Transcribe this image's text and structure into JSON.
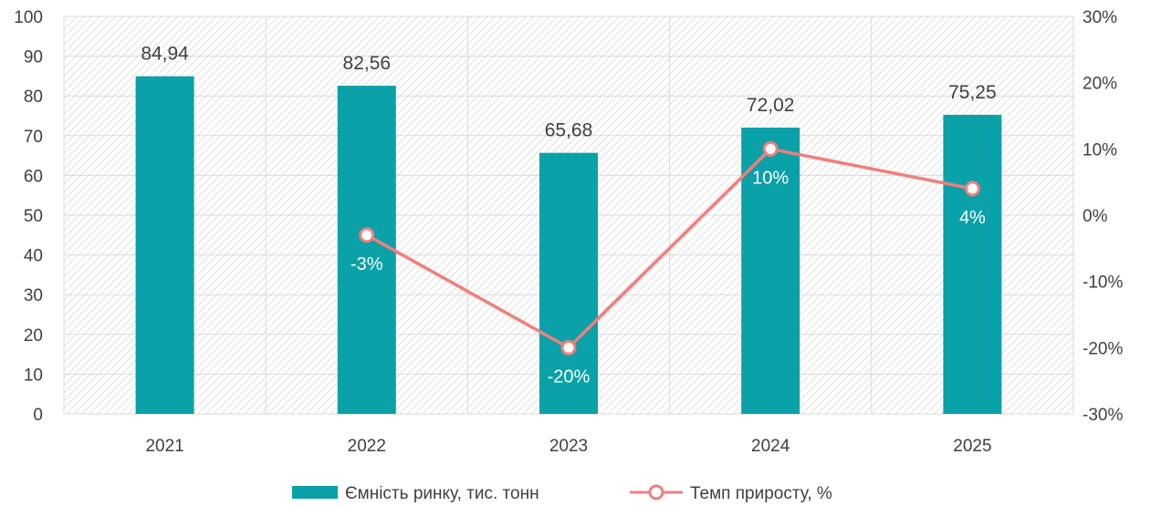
{
  "colors": {
    "bar": "#0aa1a8",
    "line": "#f07f7c",
    "grid": "#d9d9d9",
    "text": "#404040"
  },
  "chart_data": {
    "type": "bar",
    "categories": [
      "2021",
      "2022",
      "2023",
      "2024",
      "2025"
    ],
    "series": [
      {
        "name": "Ємність ринку, тис. тонн",
        "type": "bar",
        "axis": "left",
        "values": [
          84.94,
          82.56,
          65.68,
          72.02,
          75.25
        ],
        "labels": [
          "84,94",
          "82,56",
          "65,68",
          "72,02",
          "75,25"
        ]
      },
      {
        "name": "Темп приросту, %",
        "type": "line",
        "axis": "right",
        "values": [
          null,
          -3,
          -20,
          10,
          4
        ],
        "labels": [
          "",
          "-3%",
          "-20%",
          "10%",
          "4%"
        ]
      }
    ],
    "left_axis": {
      "min": 0,
      "max": 100,
      "step": 10,
      "ticks": [
        "0",
        "10",
        "20",
        "30",
        "40",
        "50",
        "60",
        "70",
        "80",
        "90",
        "100"
      ]
    },
    "right_axis": {
      "min": -30,
      "max": 30,
      "step": 10,
      "ticks": [
        "-30%",
        "-20%",
        "-10%",
        "0%",
        "10%",
        "20%",
        "30%"
      ]
    },
    "grid": true,
    "legend_position": "bottom"
  }
}
